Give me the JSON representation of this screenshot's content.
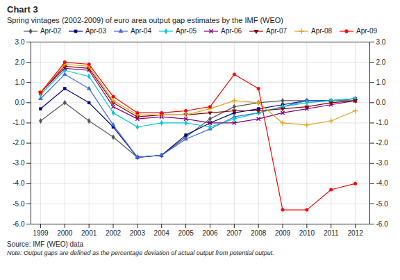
{
  "chart_data": {
    "type": "line",
    "title": "Chart 3",
    "subtitle": "Spring vintages (2002-2009) of euro area output gap estimates by the IMF (WEO)",
    "annotations": [
      "Source: IMF (WEO) data",
      "Note: Output gaps are defined as the percentage deviation of actual output from potential output."
    ],
    "x": [
      1999,
      2000,
      2001,
      2002,
      2003,
      2004,
      2005,
      2006,
      2007,
      2008,
      2009,
      2010,
      2011,
      2012
    ],
    "xlim": [
      1998.6,
      2012.6
    ],
    "xticks": [
      1999,
      2000,
      2001,
      2002,
      2003,
      2004,
      2005,
      2006,
      2007,
      2008,
      2009,
      2010,
      2011,
      2012
    ],
    "ylim": [
      -6.0,
      3.0
    ],
    "yticks": [
      {
        "value": -6.0,
        "label": "-6.0"
      },
      {
        "value": -5.0,
        "label": "-5.0"
      },
      {
        "value": -4.0,
        "label": "-4.0"
      },
      {
        "value": -3.0,
        "label": "-3.0"
      },
      {
        "value": -2.0,
        "label": "-2.0"
      },
      {
        "value": -1.0,
        "label": "-1.0"
      },
      {
        "value": 0.0,
        "label": "0.0"
      },
      {
        "value": 1.0,
        "label": "1.0"
      },
      {
        "value": 2.0,
        "label": "2.0"
      },
      {
        "value": 3.0,
        "label": "3.0"
      }
    ],
    "grid": true,
    "legend": "top",
    "series": [
      {
        "name": "Apr-02",
        "color": "#555555",
        "marker": "diamond",
        "values": [
          -0.9,
          0.0,
          -0.9,
          -1.7,
          -2.7,
          -2.6,
          -1.7,
          -0.8,
          -0.2,
          0.0,
          0.1,
          0.1,
          0.1,
          0.1
        ]
      },
      {
        "name": "Apr-03",
        "color": "#000080",
        "marker": "square",
        "values": [
          -0.3,
          0.7,
          0.0,
          -1.2,
          -2.7,
          -2.6,
          -1.6,
          -1.0,
          -0.5,
          -0.3,
          -0.1,
          0.1,
          0.1,
          0.2
        ]
      },
      {
        "name": "Apr-04",
        "color": "#4169E1",
        "marker": "triangle-up",
        "values": [
          0.2,
          1.4,
          0.7,
          -1.1,
          -2.7,
          -2.6,
          -1.8,
          -1.3,
          -0.7,
          -0.5,
          -0.2,
          0.1,
          0.1,
          0.2
        ]
      },
      {
        "name": "Apr-05",
        "color": "#00CCCC",
        "marker": "diamond",
        "values": [
          0.4,
          1.6,
          1.3,
          -0.5,
          -1.2,
          -1.0,
          -1.0,
          -1.2,
          -0.8,
          -0.5,
          -0.2,
          0.0,
          0.1,
          0.2
        ]
      },
      {
        "name": "Apr-06",
        "color": "#800080",
        "marker": "x",
        "values": [
          0.5,
          1.7,
          1.6,
          -0.2,
          -0.8,
          -0.7,
          -0.8,
          -1.0,
          -1.0,
          -0.8,
          -0.5,
          -0.3,
          -0.1,
          0.1
        ]
      },
      {
        "name": "Apr-07",
        "color": "#8B0000",
        "marker": "triangle-down",
        "values": [
          0.5,
          1.8,
          1.7,
          0.0,
          -0.7,
          -0.6,
          -0.6,
          -0.5,
          -0.4,
          -0.4,
          -0.3,
          -0.2,
          0.0,
          0.1
        ]
      },
      {
        "name": "Apr-08",
        "color": "#DAA520",
        "marker": "plus",
        "values": [
          0.5,
          1.9,
          1.8,
          0.1,
          -0.6,
          -0.6,
          -0.6,
          -0.3,
          0.1,
          0.0,
          -1.0,
          -1.1,
          -0.9,
          -0.4
        ]
      },
      {
        "name": "Apr-09",
        "color": "#FF0000",
        "marker": "circle",
        "values": [
          0.5,
          2.0,
          1.9,
          0.3,
          -0.5,
          -0.5,
          -0.4,
          -0.2,
          1.4,
          0.7,
          -5.3,
          -5.3,
          -4.3,
          -4.0
        ]
      }
    ]
  }
}
